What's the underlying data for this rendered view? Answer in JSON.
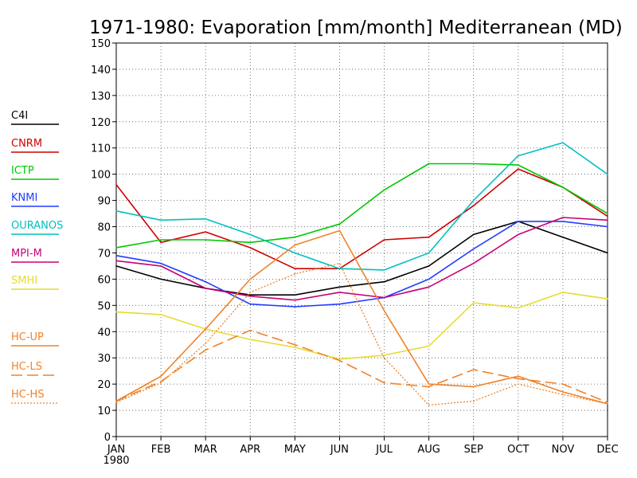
{
  "chart_data": {
    "type": "line",
    "title": "1971-1980: Evaporation [mm/month] Mediterranean (MD)",
    "categories": [
      "JAN",
      "FEB",
      "MAR",
      "APR",
      "MAY",
      "JUN",
      "JUL",
      "AUG",
      "SEP",
      "OCT",
      "NOV",
      "DEC"
    ],
    "x_sublabel": "1980",
    "ylim": [
      0,
      150
    ],
    "yticks": [
      0,
      10,
      20,
      30,
      40,
      50,
      60,
      70,
      80,
      90,
      100,
      110,
      120,
      130,
      140,
      150
    ],
    "grid": true,
    "legend_position": "left",
    "series": [
      {
        "name": "C4I",
        "color": "#000000",
        "dash": "solid",
        "values": [
          65,
          60,
          56.5,
          54,
          54,
          57,
          59,
          65,
          77,
          82,
          76,
          70
        ]
      },
      {
        "name": "CNRM",
        "color": "#d00000",
        "dash": "solid",
        "values": [
          96,
          74,
          78,
          72,
          64,
          64,
          75,
          76,
          88,
          102,
          95,
          84
        ]
      },
      {
        "name": "ICTP",
        "color": "#00c800",
        "dash": "solid",
        "values": [
          72,
          75,
          75,
          74,
          76,
          81,
          94,
          104,
          104,
          103.5,
          95,
          85
        ]
      },
      {
        "name": "KNMI",
        "color": "#1e3cff",
        "dash": "solid",
        "values": [
          69,
          66,
          59,
          50.5,
          49.5,
          50.5,
          53,
          60,
          71.5,
          82,
          82,
          80
        ]
      },
      {
        "name": "OURANOS",
        "color": "#00c0c0",
        "dash": "solid",
        "values": [
          86,
          82.5,
          83,
          77,
          70,
          64,
          63.5,
          70,
          90,
          107,
          112,
          100
        ]
      },
      {
        "name": "MPI-M",
        "color": "#c80078",
        "dash": "solid",
        "values": [
          67,
          65,
          56.5,
          53.5,
          52,
          55,
          53,
          57,
          66,
          77,
          83.5,
          82.5
        ]
      },
      {
        "name": "SMHI",
        "color": "#e6dc32",
        "dash": "solid",
        "values": [
          47.5,
          46.5,
          41,
          37,
          34,
          29.5,
          31,
          34.5,
          51,
          49,
          55,
          52.5
        ]
      },
      {
        "name": "HC-UP",
        "color": "#f08228",
        "dash": "solid",
        "values": [
          13.5,
          23,
          41,
          60,
          73,
          78.5,
          48,
          20,
          19,
          23,
          17,
          12.5
        ]
      },
      {
        "name": "HC-LS",
        "color": "#f08228",
        "dash": "dashed",
        "values": [
          13.5,
          21,
          33,
          40.5,
          35,
          29,
          20.5,
          19,
          25.5,
          22,
          20,
          13
        ]
      },
      {
        "name": "HC-HS",
        "color": "#f08228",
        "dash": "dotted",
        "values": [
          13,
          20.5,
          35.5,
          55,
          62,
          66,
          30,
          12,
          13.5,
          20,
          16,
          12.5
        ]
      }
    ]
  }
}
